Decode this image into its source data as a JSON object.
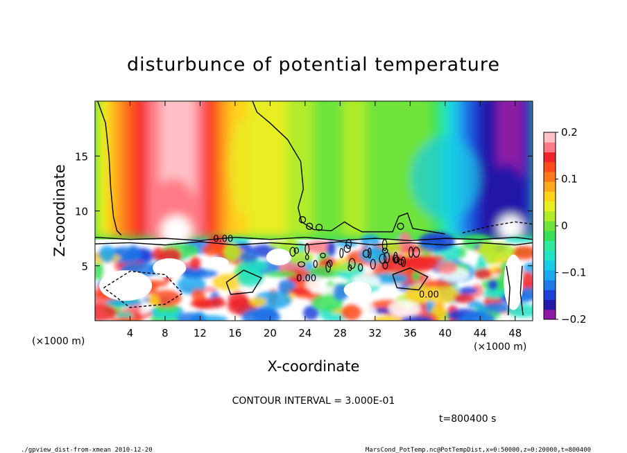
{
  "chart_data": {
    "type": "heatmap",
    "title": "disturbunce of potential temperature",
    "xlabel": "X-coordinate",
    "ylabel": "Z-coordinate",
    "x_unit_left": "(×1000 m)",
    "x_unit_right": "(×1000 m)",
    "xlim": [
      0,
      50
    ],
    "ylim": [
      0,
      20
    ],
    "x_ticks": [
      "4",
      "8",
      "12",
      "16",
      "20",
      "24",
      "28",
      "32",
      "36",
      "40",
      "44",
      "48"
    ],
    "x_tick_values": [
      4,
      8,
      12,
      16,
      20,
      24,
      28,
      32,
      36,
      40,
      44,
      48
    ],
    "y_ticks": [
      "5",
      "10",
      "15"
    ],
    "y_tick_values": [
      5,
      10,
      15
    ],
    "colorbar": {
      "ticks": [
        "0.2",
        "0.1",
        "0",
        "−0.1",
        "−0.2"
      ],
      "tick_values": [
        0.2,
        0.1,
        0,
        -0.1,
        -0.2
      ],
      "range": [
        -0.2,
        0.2
      ],
      "colors": [
        "#8c1aa6",
        "#2418a8",
        "#1c3fd8",
        "#1f78e8",
        "#1ca8f0",
        "#19cbe6",
        "#22e3c8",
        "#2fe89a",
        "#38e05a",
        "#6fe43a",
        "#b0ec2a",
        "#e8ee24",
        "#ffd21c",
        "#ffa81c",
        "#ff781c",
        "#ff4a1c",
        "#f0242a",
        "#ff7a86",
        "#ffc0c6"
      ]
    },
    "contour_label": "0.00",
    "contour_interval_text": "CONTOUR INTERVAL = 3.000E-01",
    "time_text": "t=800400 s",
    "footer_left": "./gpview_dist-from-xmean  2010-12-20",
    "footer_right": "MarsCond_PotTemp.nc@PotTempDist,x=0:50000,z=0:20000,t=800400",
    "upper_layer_profile": {
      "x": [
        0,
        2,
        4,
        6,
        8,
        10,
        12,
        14,
        16,
        18,
        20,
        22,
        24,
        26,
        28,
        30,
        32,
        34,
        36,
        38,
        40,
        42,
        44,
        46,
        48,
        50
      ],
      "values": [
        0.02,
        0.08,
        0.12,
        0.16,
        0.19,
        0.2,
        0.17,
        0.1,
        0.06,
        0.05,
        0.04,
        0.03,
        0.02,
        0.0,
        0.01,
        0.02,
        0.0,
        -0.01,
        0.01,
        0.0,
        -0.06,
        -0.12,
        -0.16,
        -0.18,
        -0.2,
        -0.12
      ]
    }
  }
}
